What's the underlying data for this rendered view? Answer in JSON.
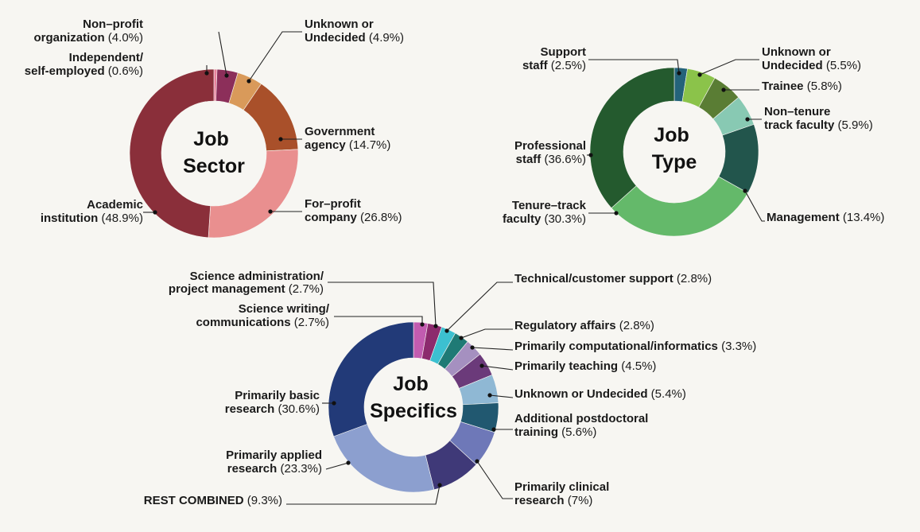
{
  "chart_data": [
    {
      "type": "pie",
      "title": "Job Sector",
      "slices": [
        {
          "name": "Independent/ self-employed",
          "value": 0.6,
          "color": "#e8829c",
          "lines": [
            "Independent/",
            "self-employed"
          ],
          "pct": "(0.6%)"
        },
        {
          "name": "Non-profit organization",
          "value": 4.0,
          "color": "#8c2f5a",
          "lines": [
            "Non–profit",
            "organization"
          ],
          "pct": "(4.0%)"
        },
        {
          "name": "Unknown or Undecided",
          "value": 4.9,
          "color": "#d99a5a",
          "lines": [
            "Unknown or",
            "Undecided"
          ],
          "pct": "(4.9%)"
        },
        {
          "name": "Government agency",
          "value": 14.7,
          "color": "#a9502a",
          "lines": [
            "Government",
            "agency"
          ],
          "pct": "(14.7%)"
        },
        {
          "name": "For-profit company",
          "value": 26.8,
          "color": "#e98f8f",
          "lines": [
            "For–profit",
            "company"
          ],
          "pct": "(26.8%)"
        },
        {
          "name": "Academic institution",
          "value": 48.9,
          "color": "#8a2f3a",
          "lines": [
            "Academic",
            "institution"
          ],
          "pct": "(48.9%)"
        }
      ]
    },
    {
      "type": "pie",
      "title": "Job Type",
      "slices": [
        {
          "name": "Support staff",
          "value": 2.5,
          "color": "#24637a",
          "lines": [
            "Support",
            "staff"
          ],
          "pct": "(2.5%)"
        },
        {
          "name": "Unknown or Undecided",
          "value": 5.5,
          "color": "#8bc34a",
          "lines": [
            "Unknown or",
            "Undecided"
          ],
          "pct": "(5.5%)"
        },
        {
          "name": "Trainee",
          "value": 5.8,
          "color": "#5a7d34",
          "lines": [
            "Trainee"
          ],
          "pct": "(5.8%)"
        },
        {
          "name": "Non-tenure track faculty",
          "value": 5.9,
          "color": "#88c9b3",
          "lines": [
            "Non–tenure",
            "track faculty"
          ],
          "pct": "(5.9%)"
        },
        {
          "name": "Management",
          "value": 13.4,
          "color": "#22554c",
          "lines": [
            "Management"
          ],
          "pct": "(13.4%)"
        },
        {
          "name": "Tenure-track faculty",
          "value": 30.3,
          "color": "#64b96a",
          "lines": [
            "Tenure–track",
            "faculty"
          ],
          "pct": "(30.3%)"
        },
        {
          "name": "Professional staff",
          "value": 36.6,
          "color": "#245a2e",
          "lines": [
            "Professional",
            "staff"
          ],
          "pct": "(36.6%)"
        }
      ]
    },
    {
      "type": "pie",
      "title": "Job Specifics",
      "slices": [
        {
          "name": "Science writing/ communications",
          "value": 2.7,
          "color": "#c25cb0",
          "lines": [
            "Science writing/",
            "communications"
          ],
          "pct": "(2.7%)"
        },
        {
          "name": "Science administration/ project management",
          "value": 2.7,
          "color": "#8c2a6d",
          "lines": [
            "Science administration/",
            "project management"
          ],
          "pct": "(2.7%)"
        },
        {
          "name": "Technical/customer support",
          "value": 2.8,
          "color": "#3cc0d0",
          "lines": [
            "Technical/customer support"
          ],
          "pct": "(2.8%)"
        },
        {
          "name": "Regulatory affairs",
          "value": 2.8,
          "color": "#1f7a75",
          "lines": [
            "Regulatory affairs"
          ],
          "pct": "(2.8%)"
        },
        {
          "name": "Primarily computational/informatics",
          "value": 3.3,
          "color": "#a590c0",
          "lines": [
            "Primarily computational/informatics"
          ],
          "pct": "(3.3%)"
        },
        {
          "name": "Primarily teaching",
          "value": 4.5,
          "color": "#6b3a7a",
          "lines": [
            "Primarily teaching"
          ],
          "pct": "(4.5%)"
        },
        {
          "name": "Unknown or Undecided",
          "value": 5.4,
          "color": "#8fb8d4",
          "lines": [
            "Unknown or Undecided"
          ],
          "pct": "(5.4%)"
        },
        {
          "name": "Additional postdoctoral training",
          "value": 5.6,
          "color": "#215870",
          "lines": [
            "Additional postdoctoral",
            "training"
          ],
          "pct": "(5.6%)"
        },
        {
          "name": "Primarily clinical research",
          "value": 7.0,
          "color": "#6e78b8",
          "lines": [
            "Primarily clinical",
            "research"
          ],
          "pct": "(7%)"
        },
        {
          "name": "REST COMBINED",
          "value": 9.3,
          "color": "#3f3978",
          "lines": [
            "REST COMBINED"
          ],
          "pct": "(9.3%)"
        },
        {
          "name": "Primarily applied research",
          "value": 23.3,
          "color": "#8c9fcf",
          "lines": [
            "Primarily applied",
            "research"
          ],
          "pct": "(23.3%)"
        },
        {
          "name": "Primarily basic research",
          "value": 30.6,
          "color": "#223a78",
          "lines": [
            "Primarily basic",
            "research"
          ],
          "pct": "(30.6%)"
        }
      ]
    }
  ],
  "colors": {
    "background": "#f7f6f2",
    "text": "#1a1a1a"
  }
}
